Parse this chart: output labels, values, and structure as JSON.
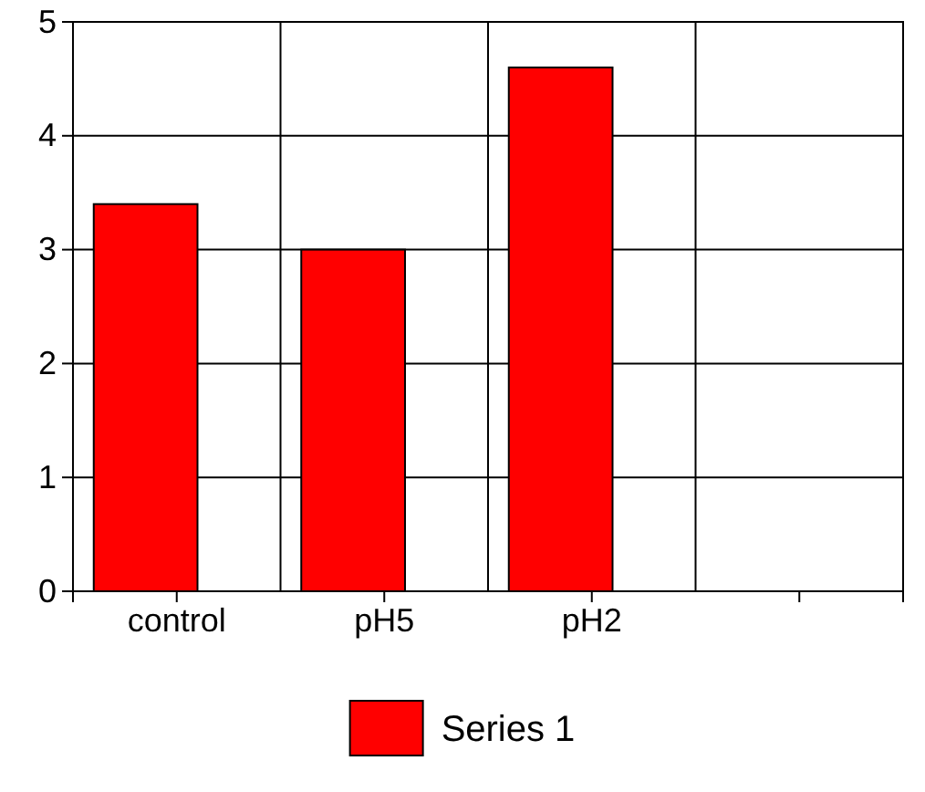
{
  "chart_data": {
    "type": "bar",
    "categories": [
      "control",
      "pH5",
      "pH2",
      null
    ],
    "series": [
      {
        "name": "Series 1",
        "color": "#ff0000",
        "values": [
          3.4,
          3.0,
          4.6,
          null
        ]
      }
    ],
    "ylim": [
      0,
      5
    ],
    "yticks": [
      0,
      1,
      2,
      3,
      4,
      5
    ],
    "grid": true,
    "legend": "bottom"
  }
}
